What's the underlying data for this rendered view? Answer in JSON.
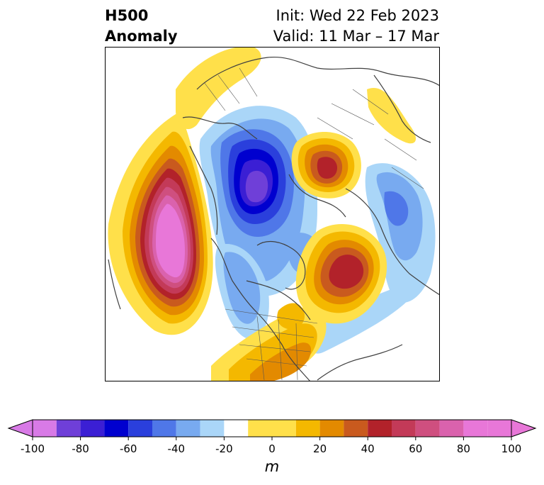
{
  "title": {
    "left_line1": "H500",
    "left_line2": "Anomaly",
    "init": "Init: Wed 22 Feb 2023",
    "valid": "Valid: 11 Mar – 17 Mar"
  },
  "colorbar": {
    "unit": "m",
    "tick_labels": [
      "-100",
      "-80",
      "-60",
      "-40",
      "-20",
      "0",
      "20",
      "40",
      "60",
      "80",
      "100"
    ],
    "levels": [
      -100,
      -90,
      -80,
      -70,
      -60,
      -50,
      -40,
      -30,
      -20,
      -10,
      10,
      20,
      30,
      40,
      50,
      60,
      70,
      80,
      90,
      100
    ],
    "colors": [
      "#d87ae6",
      "#9b5ae0",
      "#6f3fd8",
      "#3b1fd4",
      "#0000cf",
      "#2a3fdc",
      "#4f77e8",
      "#78aaf0",
      "#aad6f8",
      "#ffffff",
      "#ffe04a",
      "#f4b800",
      "#e38a00",
      "#c95a1e",
      "#b2222a",
      "#c33a58",
      "#cf4f7f",
      "#da62ad",
      "#e877d8"
    ],
    "extend": "both"
  },
  "map": {
    "projection": "north-polar-stereographic",
    "field": "500 hPa geopotential height anomaly"
  }
}
